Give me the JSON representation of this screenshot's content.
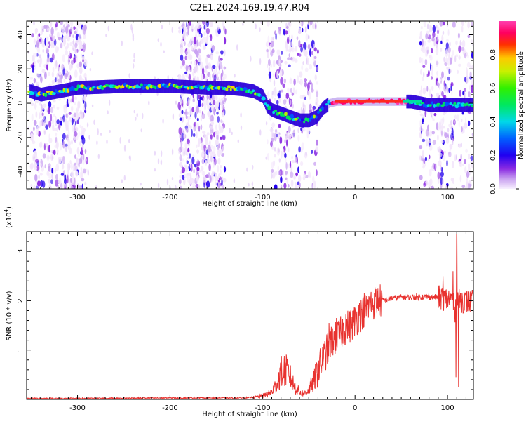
{
  "title": "C2E1.2024.169.19.47.R04",
  "chart_data": [
    {
      "type": "heatmap",
      "xlabel": "Height of straight line (km)",
      "ylabel": "Frequency (Hz)",
      "xlim": [
        -355,
        128
      ],
      "ylim": [
        -50,
        48
      ],
      "xticks": [
        -300,
        -200,
        -100,
        0,
        100
      ],
      "xtick_labels": [
        "-300",
        "-200",
        "-100",
        "0",
        "100"
      ],
      "yticks": [
        -40,
        -20,
        0,
        20,
        40
      ],
      "ytick_labels": [
        "-40",
        "-20",
        "0",
        "20",
        "40"
      ],
      "colorbar": {
        "label": "Normalized spectral amplitude",
        "range": [
          0,
          1
        ],
        "ticks": [
          0.0,
          0.2,
          0.4,
          0.6,
          0.8
        ],
        "tick_labels": [
          "0.0",
          "0.2",
          "0.4",
          "0.6",
          "0.8"
        ],
        "colors": [
          "#f3e6fb",
          "#c9a2f2",
          "#8a2be2",
          "#2200ee",
          "#0055ff",
          "#00d8e8",
          "#00e060",
          "#b8f000",
          "#ffd000",
          "#ff3000",
          "#ff0070",
          "#ff3ca8"
        ]
      },
      "ridge": {
        "x": [
          -352,
          -345,
          -340,
          -300,
          -250,
          -200,
          -160,
          -140,
          -120,
          -110,
          -100,
          -95,
          -90,
          -80,
          -70,
          -60,
          -50,
          -42,
          -35,
          -28,
          -20,
          -10,
          0,
          20,
          40,
          60,
          70,
          80,
          100,
          120,
          128
        ],
        "y": [
          7,
          6,
          5,
          9,
          10,
          10,
          9,
          9,
          8,
          7,
          4,
          -2,
          -4,
          -6,
          -8,
          -10,
          -10,
          -8,
          -3,
          0,
          1,
          1,
          1,
          1,
          1,
          1,
          0,
          -1,
          -1,
          -1,
          -1
        ]
      },
      "noise_segments": [
        {
          "x": [
            -350,
            -290
          ],
          "density": "high"
        },
        {
          "x": [
            -190,
            -140
          ],
          "density": "high"
        },
        {
          "x": [
            -95,
            -40
          ],
          "density": "medium"
        },
        {
          "x": [
            70,
            128
          ],
          "density": "medium"
        }
      ],
      "grid": false
    },
    {
      "type": "line",
      "xlabel": "Height of straight line (km)",
      "ylabel": "SNR (10 * v/v)",
      "y_multiplier_label": "(x10",
      "y_multiplier_exp": "4",
      "xlim": [
        -355,
        128
      ],
      "ylim": [
        0,
        3.4
      ],
      "xticks": [
        -300,
        -200,
        -100,
        0,
        100
      ],
      "xtick_labels": [
        "-300",
        "-200",
        "-100",
        "0",
        "100"
      ],
      "yticks": [
        1,
        2,
        3
      ],
      "ytick_labels": [
        "1",
        "2",
        "3"
      ],
      "color": "#e8322f",
      "envelope": {
        "x": [
          -355,
          -300,
          -200,
          -120,
          -105,
          -95,
          -90,
          -85,
          -80,
          -75,
          -70,
          -65,
          -60,
          -55,
          -50,
          -45,
          -40,
          -35,
          -30,
          -25,
          -20,
          -15,
          -10,
          -5,
          0,
          5,
          10,
          15,
          20,
          25,
          30,
          40,
          50,
          60,
          70,
          80,
          90,
          95,
          100,
          105,
          108,
          110,
          112,
          115,
          120,
          128
        ],
        "y": [
          0.02,
          0.02,
          0.03,
          0.03,
          0.05,
          0.1,
          0.15,
          0.3,
          0.55,
          0.6,
          0.45,
          0.25,
          0.15,
          0.12,
          0.2,
          0.35,
          0.6,
          0.8,
          1.0,
          1.2,
          1.25,
          1.35,
          1.45,
          1.5,
          1.6,
          1.7,
          1.8,
          1.9,
          1.95,
          2.0,
          2.0,
          2.05,
          2.07,
          2.07,
          2.08,
          2.08,
          2.07,
          2.05,
          2.03,
          2.05,
          1.8,
          2.0,
          2.0,
          2.0,
          1.98,
          1.97
        ]
      },
      "spikes": [
        {
          "x": -80,
          "y": 0.78
        },
        {
          "x": -73,
          "y": 0.72
        },
        {
          "x": -38,
          "y": 0.95
        },
        {
          "x": -28,
          "y": 1.55
        },
        {
          "x": -25,
          "y": 1.35
        },
        {
          "x": -20,
          "y": 1.65
        },
        {
          "x": -10,
          "y": 1.72
        },
        {
          "x": 5,
          "y": 1.95
        },
        {
          "x": 10,
          "y": 2.15
        },
        {
          "x": 95,
          "y": 2.5
        },
        {
          "x": 106,
          "y": 2.6
        },
        {
          "x": 110,
          "y": 3.35
        },
        {
          "x": 112,
          "y": 0.25
        },
        {
          "x": 109,
          "y": 0.45
        }
      ],
      "grid": false
    }
  ]
}
